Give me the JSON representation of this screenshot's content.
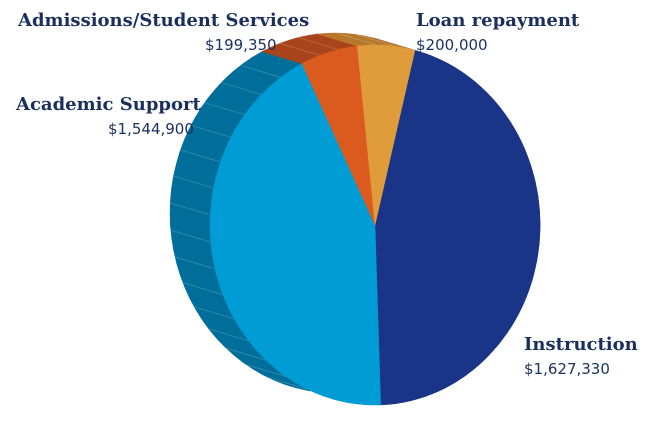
{
  "chart_data": {
    "type": "pie",
    "title": "",
    "slices": [
      {
        "label": "Instruction",
        "value": 1627330,
        "value_text": "$1,627,330",
        "color": "#1a3587",
        "side_color": "#14296a"
      },
      {
        "label": "Academic Support",
        "value": 1544900,
        "value_text": "$1,544,900",
        "color": "#009cd6",
        "side_color": "#006e9a"
      },
      {
        "label": "Admissions/Student Services",
        "value": 199350,
        "value_text": "$199,350",
        "color": "#db5a1e",
        "side_color": "#a8431a"
      },
      {
        "label": "Loan repayment",
        "value": 200000,
        "value_text": "$200,000",
        "color": "#e09b3a",
        "side_color": "#b7772a"
      }
    ],
    "style": "3d-tilted"
  }
}
